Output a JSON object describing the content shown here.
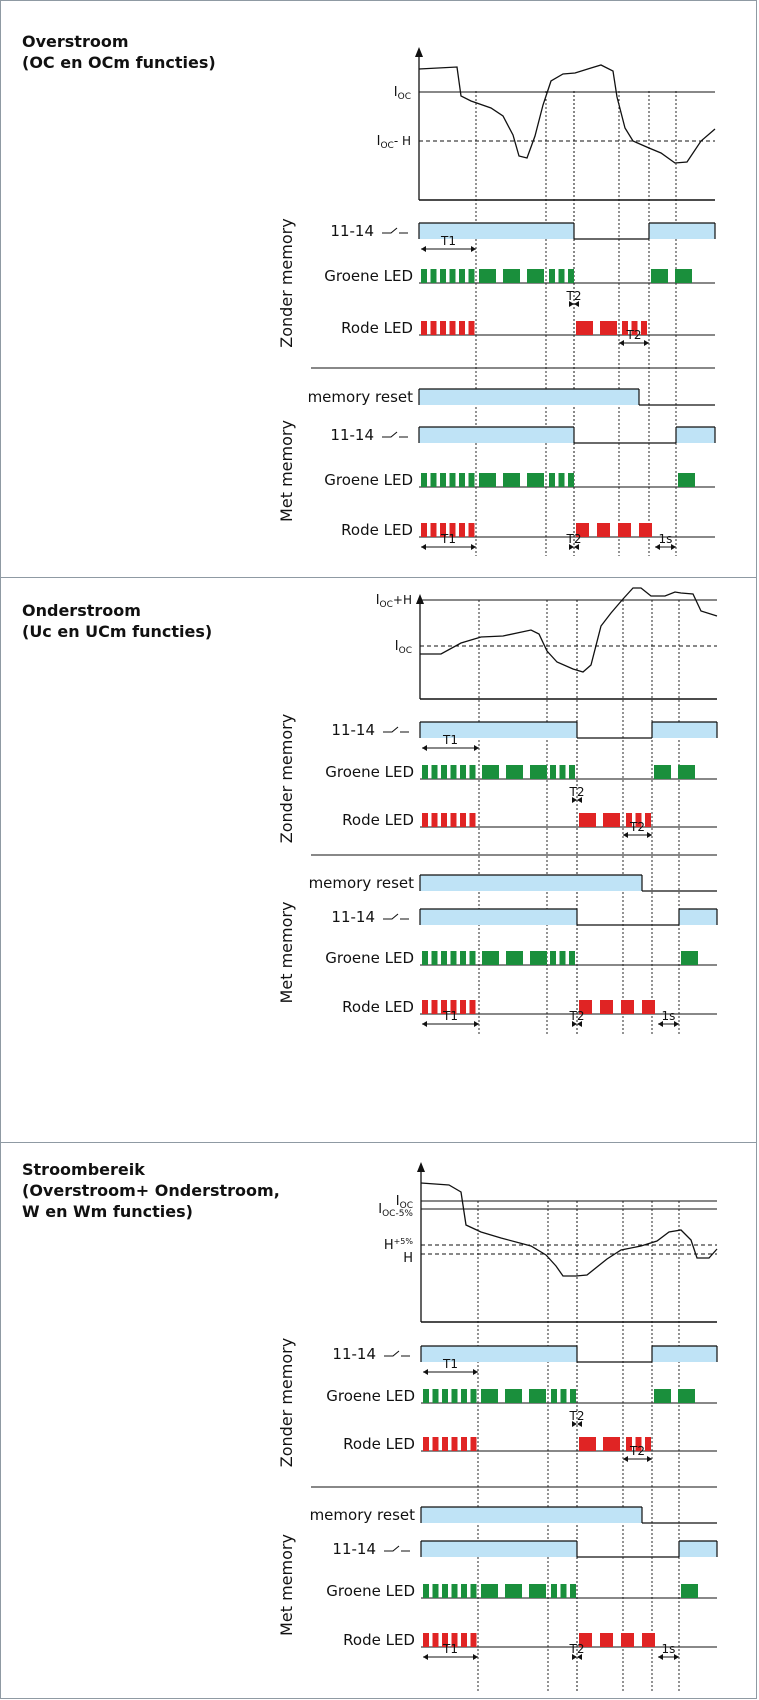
{
  "colors": {
    "relay_fill": "#bfe3f6",
    "green_led": "#1a8f3c",
    "red_led": "#e02424",
    "panel_border": "#8f9aa3"
  },
  "panels": [
    {
      "title_lines": [
        "Overstroom",
        "(OC en OCm functies)"
      ],
      "levels": [
        {
          "main": "I",
          "sub": "OC",
          "suffix": ""
        },
        {
          "main": "I",
          "sub": "OC",
          "suffix": "- H"
        }
      ],
      "group_labels": [
        "Zonder memory",
        "Met memory"
      ],
      "rows_without_memory": [
        "11-14",
        "Groene LED",
        "Rode LED"
      ],
      "rows_with_memory": [
        "memory reset",
        "11-14",
        "Groene LED",
        "Rode LED"
      ],
      "timers": [
        "T1",
        "T2",
        "T2",
        "T1",
        "T2",
        "1s"
      ]
    },
    {
      "title_lines": [
        "Onderstroom",
        "(Uc en UCm functies)"
      ],
      "levels": [
        {
          "main": "I",
          "sub": "OC",
          "suffix": "+H"
        },
        {
          "main": "I",
          "sub": "OC",
          "suffix": ""
        }
      ],
      "group_labels": [
        "Zonder memory",
        "Met memory"
      ],
      "rows_without_memory": [
        "11-14",
        "Groene LED",
        "Rode LED"
      ],
      "rows_with_memory": [
        "memory reset",
        "11-14",
        "Groene LED",
        "Rode LED"
      ],
      "timers": [
        "T1",
        "T2",
        "T2",
        "T1",
        "T2",
        "1s"
      ]
    },
    {
      "title_lines": [
        "Stroombereik",
        "(Overstroom+ Onderstroom,",
        "W en Wm functies)"
      ],
      "levels": [
        {
          "main": "I",
          "sub": "OC",
          "suffix": ""
        },
        {
          "main": "I",
          "sub": "OC-5%",
          "suffix": ""
        },
        {
          "main": "H",
          "sub": "",
          "sup": "+5%",
          "suffix": ""
        },
        {
          "main": "H",
          "sub": "",
          "suffix": ""
        }
      ],
      "group_labels": [
        "Zonder memory",
        "Met memory"
      ],
      "rows_without_memory": [
        "11-14",
        "Groene LED",
        "Rode LED"
      ],
      "rows_with_memory": [
        "memory reset",
        "11-14",
        "Groene LED",
        "Rode LED"
      ],
      "timers": [
        "T1",
        "T2",
        "T2",
        "T1",
        "T2",
        "1s"
      ]
    }
  ]
}
